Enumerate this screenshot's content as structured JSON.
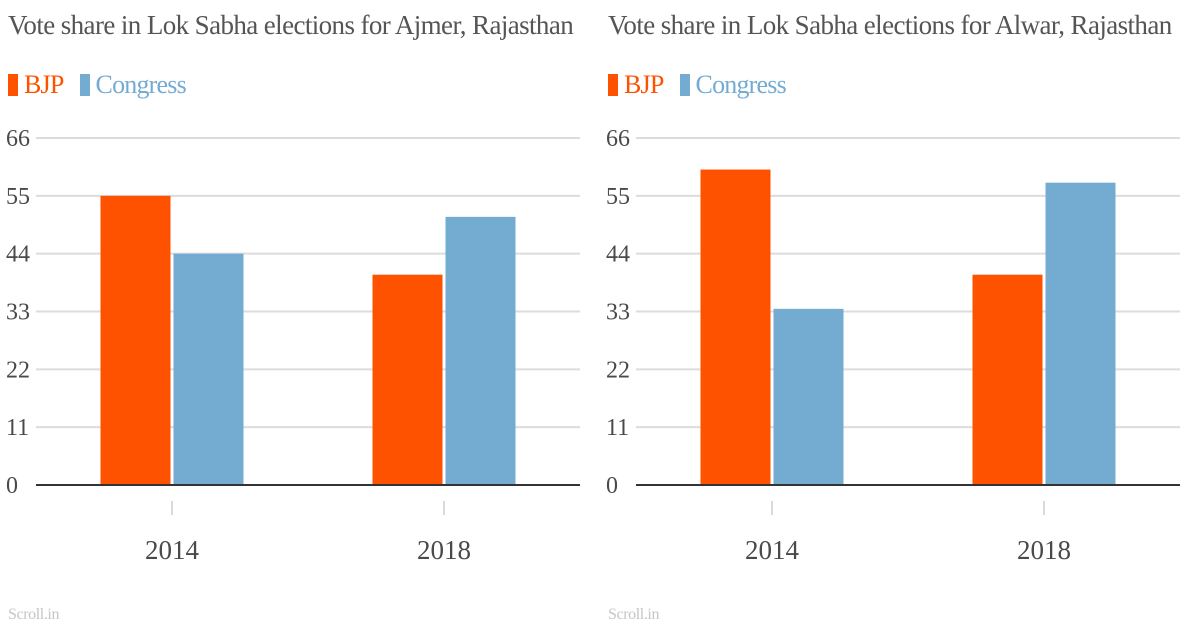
{
  "colors": {
    "bjp": "#ff5200",
    "congress": "#74abd1"
  },
  "panels": [
    {
      "title": "Vote share in Lok Sabha elections for Ajmer, Rajasthan",
      "legend": [
        "BJP",
        "Congress"
      ],
      "source": "Scroll.in"
    },
    {
      "title": "Vote share in Lok Sabha elections for Alwar, Rajasthan",
      "legend": [
        "BJP",
        "Congress"
      ],
      "source": "Scroll.in"
    }
  ],
  "chart_data": [
    {
      "type": "bar",
      "title": "Vote share in Lok Sabha elections for Ajmer, Rajasthan",
      "categories": [
        "2014",
        "2018"
      ],
      "series": [
        {
          "name": "BJP",
          "values": [
            55,
            40
          ]
        },
        {
          "name": "Congress",
          "values": [
            44,
            51
          ]
        }
      ],
      "yticks": [
        0,
        11,
        22,
        33,
        44,
        55,
        66
      ],
      "ylim": [
        0,
        66
      ],
      "grid": true,
      "legend_position": "top-left"
    },
    {
      "type": "bar",
      "title": "Vote share in Lok Sabha elections for Alwar, Rajasthan",
      "categories": [
        "2014",
        "2018"
      ],
      "series": [
        {
          "name": "BJP",
          "values": [
            60,
            40
          ]
        },
        {
          "name": "Congress",
          "values": [
            33.5,
            57.5
          ]
        }
      ],
      "yticks": [
        0,
        11,
        22,
        33,
        44,
        55,
        66
      ],
      "ylim": [
        0,
        66
      ],
      "grid": true,
      "legend_position": "top-left"
    }
  ]
}
